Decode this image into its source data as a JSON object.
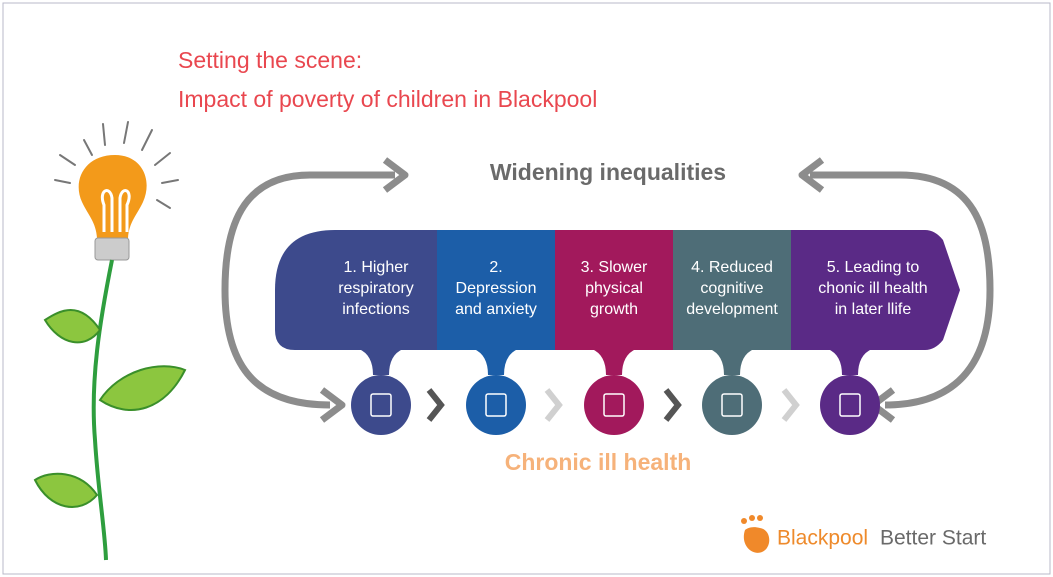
{
  "title": {
    "lines": [
      "Setting the scene:",
      "Impact of poverty of children in Blackpool"
    ]
  },
  "cycle": {
    "top_label": "Widening inequalities",
    "bottom_label": "Chronic ill health"
  },
  "steps": [
    {
      "lines": [
        "1. Higher",
        "respiratory",
        "infections"
      ]
    },
    {
      "lines": [
        "2.",
        "Depression",
        "and anxiety"
      ]
    },
    {
      "lines": [
        "3. Slower",
        "physical",
        "growth"
      ]
    },
    {
      "lines": [
        "4. Reduced",
        "cognitive",
        "development"
      ]
    },
    {
      "lines": [
        "5. Leading to",
        "chonic ill health",
        "in later llife"
      ]
    }
  ],
  "logo": {
    "name": "Blackpool",
    "suffix": "Better Start"
  }
}
